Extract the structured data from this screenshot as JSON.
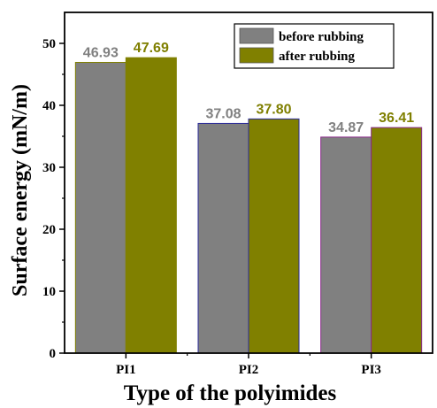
{
  "chart_data": {
    "type": "bar",
    "categories": [
      "PI1",
      "PI2",
      "PI3"
    ],
    "series": [
      {
        "name": "before rubbing",
        "values": [
          46.93,
          37.08,
          34.87
        ],
        "labels": [
          "46.93",
          "37.08",
          "34.87"
        ],
        "color": "#808080",
        "label_color": "#808080",
        "edge_colors": [
          "#808000",
          "#2a2a9a",
          "#8a2a8a"
        ]
      },
      {
        "name": "after rubbing",
        "values": [
          47.69,
          37.8,
          36.41
        ],
        "labels": [
          "47.69",
          "37.80",
          "36.41"
        ],
        "color": "#808000",
        "label_color": "#7f7f00",
        "edge_colors": [
          "#808000",
          "#2a2a9a",
          "#8a2a8a"
        ]
      }
    ],
    "xlabel": "Type of the polyimides",
    "ylabel": "Surface energy (mN/m)",
    "ylim": [
      0,
      55
    ],
    "yticks": [
      0,
      10,
      20,
      30,
      40,
      50
    ],
    "grid": false,
    "legend": "top-right"
  }
}
